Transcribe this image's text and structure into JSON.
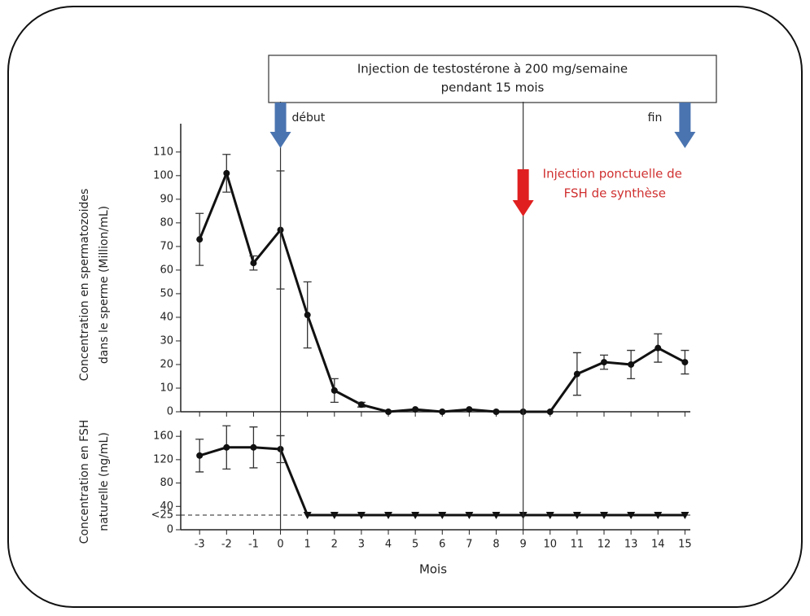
{
  "annotations": {
    "box": [
      "Injection de testostérone à 200 mg/semaine",
      "pendant 15 mois"
    ],
    "start": "début",
    "end": "fin",
    "fsh_injection": [
      "Injection ponctuelle de",
      "FSH de synthèse"
    ]
  },
  "chart_data": [
    {
      "type": "line",
      "y_label": [
        "Concentration en spermatozoides",
        "dans le sperme (Million/mL)"
      ],
      "x": [
        -3,
        -2,
        -1,
        0,
        1,
        2,
        3,
        4,
        5,
        6,
        7,
        8,
        9,
        10,
        11,
        12,
        13,
        14,
        15
      ],
      "series": [
        {
          "color": "#111111",
          "values": [
            73,
            101,
            63,
            77,
            41,
            9,
            3,
            0,
            1,
            0,
            1,
            0,
            0,
            0,
            16,
            21,
            20,
            27,
            21
          ],
          "errors": [
            11,
            8,
            3,
            25,
            14,
            5,
            1,
            0,
            0,
            0,
            0,
            0,
            0,
            0,
            9,
            3,
            6,
            6,
            5
          ]
        }
      ],
      "xlim": [
        -3.7,
        15.2
      ],
      "ylim": [
        0,
        122
      ],
      "yticks": [
        0,
        10,
        20,
        30,
        40,
        50,
        60,
        70,
        80,
        90,
        100,
        110
      ],
      "vlines": [
        0,
        9
      ],
      "arrows": [
        {
          "x": 0,
          "color": "#4a74b0"
        },
        {
          "x": 15,
          "color": "#4a74b0"
        },
        {
          "x": 9,
          "color": "#e02020"
        }
      ]
    },
    {
      "type": "line",
      "y_label": [
        "Concentration en FSH",
        "naturelle (ng/mL)"
      ],
      "x_label": "Mois",
      "x": [
        -3,
        -2,
        -1,
        0,
        1,
        2,
        3,
        4,
        5,
        6,
        7,
        8,
        9,
        10,
        11,
        12,
        13,
        14,
        15
      ],
      "series": [
        {
          "color": "#111111",
          "values": [
            127,
            141,
            141,
            138,
            25,
            25,
            25,
            25,
            25,
            25,
            25,
            25,
            25,
            25,
            25,
            25,
            25,
            25,
            25
          ],
          "errors": [
            28,
            37,
            35,
            23,
            null,
            null,
            null,
            null,
            null,
            null,
            null,
            null,
            null,
            null,
            null,
            null,
            null,
            null,
            null
          ],
          "markers": [
            "circle",
            "circle",
            "circle",
            "circle",
            "triangle",
            "triangle",
            "triangle",
            "triangle",
            "triangle",
            "triangle",
            "triangle",
            "triangle",
            "triangle",
            "triangle",
            "triangle",
            "triangle",
            "triangle",
            "triangle",
            "triangle"
          ]
        }
      ],
      "xlim": [
        -3.7,
        15.2
      ],
      "ylim": [
        0,
        170
      ],
      "yticks": [
        0,
        {
          "value": 25,
          "label": "<25"
        },
        40,
        80,
        120,
        160
      ],
      "hline": 25
    }
  ]
}
